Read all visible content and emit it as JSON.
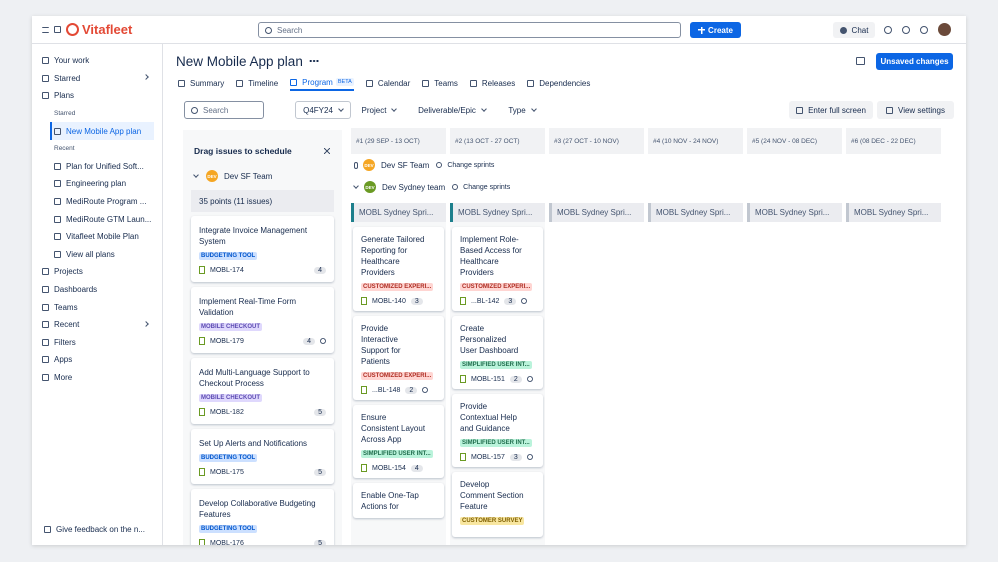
{
  "topbar": {
    "logo": "Vitafleet",
    "search": "Search",
    "create": "Create",
    "chat": "Chat"
  },
  "sidebar": {
    "top": [
      "Your work",
      "Starred",
      "Plans"
    ],
    "starred_label": "Starred",
    "starred": [
      "New Mobile App plan"
    ],
    "recent_label": "Recent",
    "recent": [
      "Plan for Unified Soft...",
      "Engineering plan",
      "MediRoute Program ...",
      "MediRoute GTM Laun...",
      "Vitafleet Mobile Plan"
    ],
    "view_all": "View all plans",
    "bottom": [
      "Projects",
      "Dashboards",
      "Teams",
      "Recent",
      "Filters",
      "Apps",
      "More"
    ],
    "feedback": "Give feedback on the n..."
  },
  "header": {
    "title": "New Mobile App plan",
    "tabs": [
      "Summary",
      "Timeline",
      "Program",
      "Calendar",
      "Teams",
      "Releases",
      "Dependencies"
    ],
    "beta": "BETA",
    "unsaved": "Unsaved changes"
  },
  "toolbar": {
    "search": "Search",
    "filters": [
      "Q4FY24",
      "Project",
      "Deliverable/Epic",
      "Type"
    ],
    "fullscreen": "Enter full screen",
    "settings": "View settings"
  },
  "backlog": {
    "title": "Drag issues to schedule",
    "avatar": "DEV",
    "team": "Dev SF Team",
    "summary": "35 points (11 issues)",
    "cards": [
      {
        "title": "Integrate Invoice Management System",
        "tag": "BUDGETING TOOL",
        "tag_colors": [
          "#cce0ff",
          "#0055cc"
        ],
        "key": "MOBL-174",
        "points": 4,
        "linked": false
      },
      {
        "title": "Implement Real-Time Form Validation",
        "tag": "MOBILE CHECKOUT",
        "tag_colors": [
          "#dfd8fd",
          "#5e4db2"
        ],
        "key": "MOBL-179",
        "points": 4,
        "linked": true
      },
      {
        "title": "Add Multi-Language Support to Checkout Process",
        "tag": "MOBILE CHECKOUT",
        "tag_colors": [
          "#dfd8fd",
          "#5e4db2"
        ],
        "key": "MOBL-182",
        "points": 5,
        "linked": false
      },
      {
        "title": "Set Up Alerts and Notifications",
        "tag": "BUDGETING TOOL",
        "tag_colors": [
          "#cce0ff",
          "#0055cc"
        ],
        "key": "MOBL-175",
        "points": 5,
        "linked": false
      },
      {
        "title": "Develop Collaborative Budgeting Features",
        "tag": "BUDGETING TOOL",
        "tag_colors": [
          "#cce0ff",
          "#0055cc"
        ],
        "key": "MOBL-176",
        "points": 5,
        "linked": false
      }
    ]
  },
  "sprints": [
    "#1 (29 SEP - 13 OCT)",
    "#2 (13 OCT - 27 OCT)",
    "#3 (27 OCT - 10 NOV)",
    "#4 (10 NOV - 24 NOV)",
    "#5 (24 NOV - 08 DEC)",
    "#6 (08 DEC - 22 DEC)"
  ],
  "teams": [
    {
      "avatar": "DEV",
      "avatar_color": "#f5a623",
      "name": "Dev SF Team",
      "action": "Change sprints"
    },
    {
      "avatar": "DEV",
      "avatar_color": "#6a9a23",
      "name": "Dev Sydney team",
      "action": "Change sprints"
    }
  ],
  "sprint_boxes": [
    "MOBL Sydney Spri...",
    "MOBL Sydney Spri...",
    "MOBL Sydney Spri...",
    "MOBL Sydney Spri...",
    "MOBL Sydney Spri...",
    "MOBL Sydney Spri..."
  ],
  "columns": [
    [
      {
        "title": "Generate Tailored Reporting for Healthcare Providers",
        "tag": "CUSTOMIZED EXPERI...",
        "tag_colors": [
          "#ffd5d2",
          "#ae2e24"
        ],
        "key": "MOBL-140",
        "points": 3,
        "linked": false
      },
      {
        "title": "Provide Interactive Support for Patients",
        "tag": "CUSTOMIZED EXPERI...",
        "tag_colors": [
          "#ffd5d2",
          "#ae2e24"
        ],
        "key": "...BL-148",
        "points": 2,
        "linked": true
      },
      {
        "title": "Ensure Consistent Layout Across App",
        "tag": "SIMPLIFIED USER INT...",
        "tag_colors": [
          "#baf3db",
          "#216e4e"
        ],
        "key": "MOBL-154",
        "points": 4,
        "linked": false
      },
      {
        "title": "Enable One-Tap Actions for"
      }
    ],
    [
      {
        "title": "Implement Role-Based Access for Healthcare Providers",
        "tag": "CUSTOMIZED EXPERI...",
        "tag_colors": [
          "#ffd5d2",
          "#ae2e24"
        ],
        "key": "...BL-142",
        "points": 3,
        "linked": true
      },
      {
        "title": "Create Personalized User Dashboard",
        "tag": "SIMPLIFIED USER INT...",
        "tag_colors": [
          "#baf3db",
          "#216e4e"
        ],
        "key": "MOBL-151",
        "points": 2,
        "linked": true
      },
      {
        "title": "Provide Contextual Help and Guidance",
        "tag": "SIMPLIFIED USER INT...",
        "tag_colors": [
          "#baf3db",
          "#216e4e"
        ],
        "key": "MOBL-157",
        "points": 3,
        "linked": true
      },
      {
        "title": "Develop Comment Section Feature",
        "tag": "CUSTOMER SURVEY",
        "tag_colors": [
          "#f8e6a0",
          "#7f5f01"
        ]
      }
    ]
  ]
}
